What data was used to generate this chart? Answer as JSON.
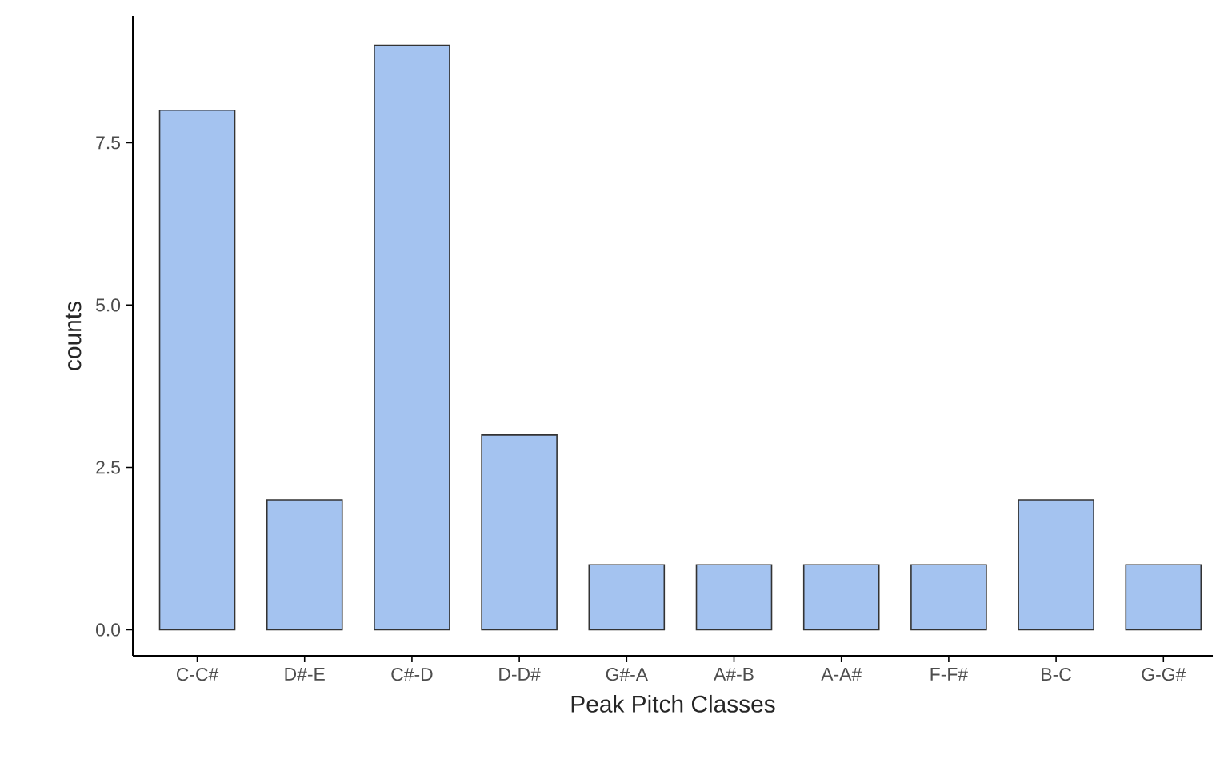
{
  "chart_data": {
    "type": "bar",
    "xlabel": "Peak Pitch Classes",
    "ylabel": "counts",
    "categories": [
      "C-C#",
      "D#-E",
      "C#-D",
      "D-D#",
      "G#-A",
      "A#-B",
      "A-A#",
      "F-F#",
      "B-C",
      "G-G#"
    ],
    "values": [
      8,
      2,
      9,
      3,
      1,
      1,
      1,
      1,
      2,
      1
    ],
    "color": "#a4c3f0",
    "ylim": [
      -0.4,
      9.45
    ],
    "yticks": [
      {
        "value": 0,
        "label": "0.0"
      },
      {
        "value": 2.5,
        "label": "2.5"
      },
      {
        "value": 5,
        "label": "5.0"
      },
      {
        "value": 7.5,
        "label": "7.5"
      }
    ],
    "grid": false
  }
}
